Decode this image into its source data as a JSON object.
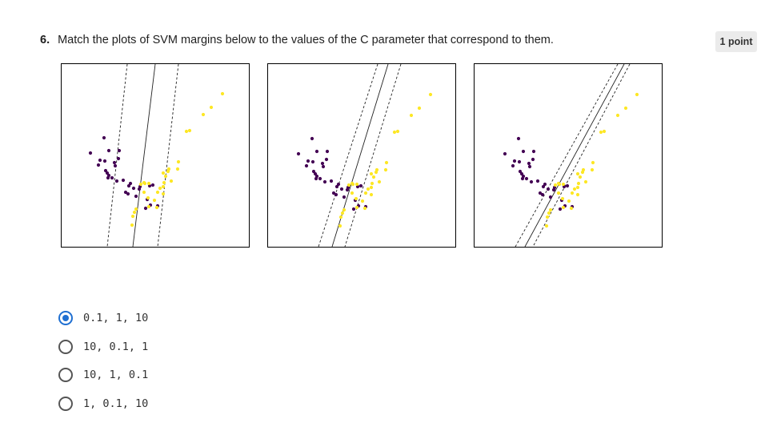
{
  "question": {
    "number": "6.",
    "text": "Match the plots of SVM margins below to the values of the C parameter that correspond to them.",
    "points": "1 point"
  },
  "plots": [
    {
      "name": "svm-plot-1"
    },
    {
      "name": "svm-plot-2"
    },
    {
      "name": "svm-plot-3"
    }
  ],
  "colors": {
    "class_a": "#440154",
    "class_b": "#fde725",
    "radio_selected": "#1f6fd1"
  },
  "options": [
    {
      "label": "0.1, 1, 10",
      "selected": true
    },
    {
      "label": "10, 0.1, 1",
      "selected": false
    },
    {
      "label": "10, 1, 0.1",
      "selected": false
    },
    {
      "label": "1, 0.1, 10",
      "selected": false
    }
  ]
}
